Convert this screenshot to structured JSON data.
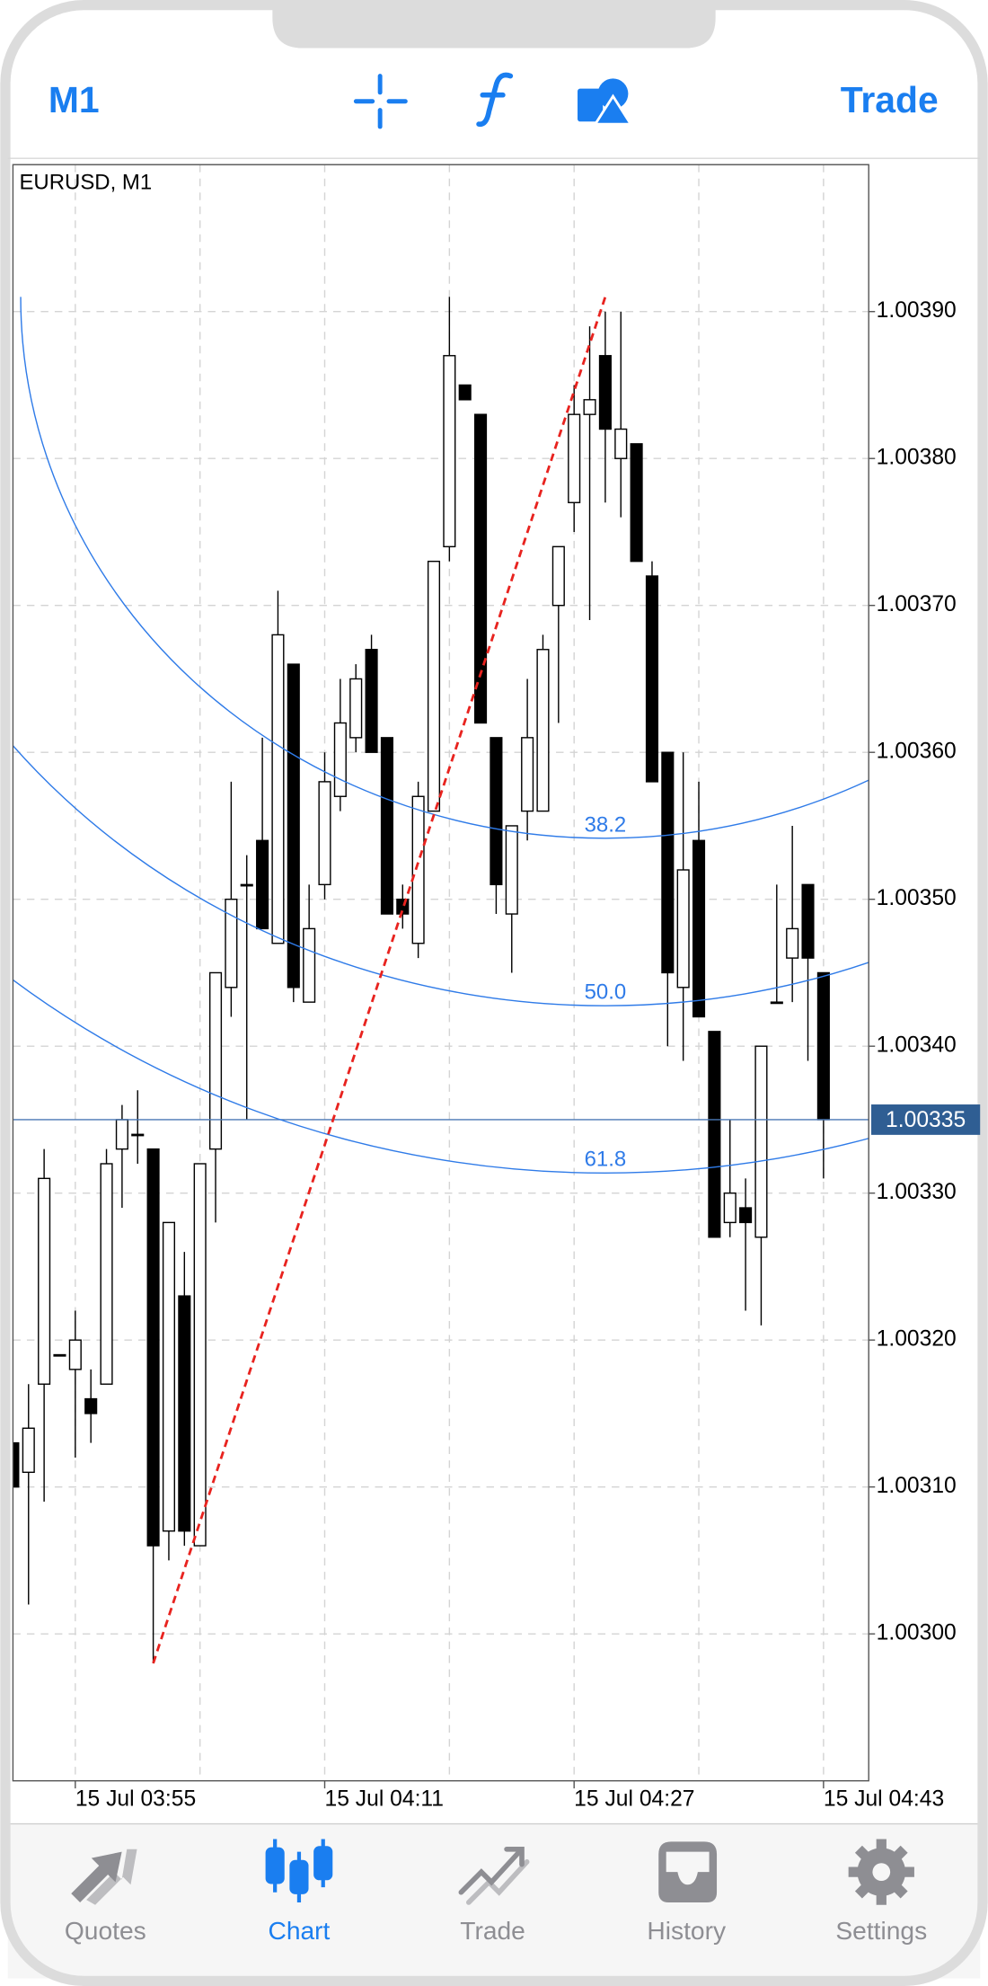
{
  "header": {
    "timeframe": "M1",
    "trade": "Trade"
  },
  "chart_data": {
    "type": "candlestick",
    "title": "EURUSD, M1",
    "open": [
      1.00313,
      1.00311,
      1.00317,
      1.00319,
      1.00318,
      1.00316,
      1.00317,
      1.00333,
      1.00334,
      1.00333,
      1.00307,
      1.00323,
      1.00306,
      1.00333,
      1.00344,
      1.00351,
      1.00354,
      1.00347,
      1.00366,
      1.00343,
      1.00351,
      1.00357,
      1.00361,
      1.00367,
      1.00361,
      1.0035,
      1.00347,
      1.00356,
      1.00374,
      1.00385,
      1.00383,
      1.00361,
      1.00349,
      1.00356,
      1.00356,
      1.0037,
      1.00377,
      1.00383,
      1.00387,
      1.0038,
      1.00381,
      1.00372,
      1.0036,
      1.00344,
      1.00354,
      1.00341,
      1.00328,
      1.00329,
      1.00327,
      1.00343,
      1.00346,
      1.00351,
      1.00345
    ],
    "high": [
      1.00313,
      1.00317,
      1.00333,
      1.00319,
      1.00322,
      1.00318,
      1.00333,
      1.00336,
      1.00337,
      1.00333,
      1.00328,
      1.00326,
      1.00332,
      1.00345,
      1.00358,
      1.00353,
      1.00361,
      1.00371,
      1.00366,
      1.00351,
      1.0036,
      1.00365,
      1.00366,
      1.00368,
      1.00361,
      1.00351,
      1.00358,
      1.00373,
      1.00391,
      1.00385,
      1.00383,
      1.00361,
      1.00355,
      1.00365,
      1.00368,
      1.00374,
      1.00385,
      1.00389,
      1.0039,
      1.0039,
      1.00381,
      1.00373,
      1.0036,
      1.0036,
      1.00358,
      1.00341,
      1.00335,
      1.00331,
      1.0034,
      1.00351,
      1.00355,
      1.00351,
      1.00345
    ],
    "low": [
      1.0031,
      1.00302,
      1.00309,
      1.00319,
      1.00312,
      1.00313,
      1.00317,
      1.00329,
      1.00332,
      1.00298,
      1.00305,
      1.00306,
      1.00306,
      1.00328,
      1.00342,
      1.00335,
      1.00348,
      1.00347,
      1.00343,
      1.00343,
      1.0035,
      1.00356,
      1.0036,
      1.0036,
      1.00349,
      1.00348,
      1.00346,
      1.00356,
      1.00373,
      1.00384,
      1.00362,
      1.00349,
      1.00345,
      1.00354,
      1.00356,
      1.00362,
      1.00375,
      1.00369,
      1.00377,
      1.00376,
      1.00373,
      1.00358,
      1.0034,
      1.00339,
      1.00342,
      1.00327,
      1.00327,
      1.00322,
      1.00321,
      1.00343,
      1.00343,
      1.00339,
      1.00331
    ],
    "close": [
      1.0031,
      1.00314,
      1.00331,
      1.00319,
      1.0032,
      1.00315,
      1.00332,
      1.00335,
      1.00334,
      1.00306,
      1.00328,
      1.00307,
      1.00332,
      1.00345,
      1.0035,
      1.00351,
      1.00348,
      1.00368,
      1.00344,
      1.00348,
      1.00358,
      1.00362,
      1.00365,
      1.0036,
      1.00349,
      1.00349,
      1.00357,
      1.00373,
      1.00387,
      1.00384,
      1.00362,
      1.00351,
      1.00355,
      1.00361,
      1.00367,
      1.00374,
      1.00383,
      1.00384,
      1.00382,
      1.00382,
      1.00373,
      1.00358,
      1.00345,
      1.00352,
      1.00342,
      1.00327,
      1.0033,
      1.00328,
      1.0034,
      1.00343,
      1.00348,
      1.00346,
      1.00335
    ],
    "up_color": "#ffffff",
    "down_color": "#000000",
    "xlim": [
      0,
      54.9
    ],
    "ylim": [
      1.0029,
      1.004
    ],
    "xticks": [
      {
        "value": 4,
        "label": "15 Jul 03:55"
      },
      {
        "value": 20,
        "label": "15 Jul 04:11"
      },
      {
        "value": 36,
        "label": "15 Jul 04:27"
      },
      {
        "value": 52,
        "label": "15 Jul 04:43"
      }
    ],
    "yticks": [
      {
        "value": 1.003,
        "label": "1.00300"
      },
      {
        "value": 1.0031,
        "label": "1.00310"
      },
      {
        "value": 1.0032,
        "label": "1.00320"
      },
      {
        "value": 1.0033,
        "label": "1.00330"
      },
      {
        "value": 1.0034,
        "label": "1.00340"
      },
      {
        "value": 1.0035,
        "label": "1.00350"
      },
      {
        "value": 1.0036,
        "label": "1.00360"
      },
      {
        "value": 1.0037,
        "label": "1.00370"
      },
      {
        "value": 1.0038,
        "label": "1.00380"
      },
      {
        "value": 1.0039,
        "label": "1.00390"
      }
    ],
    "grid": true,
    "last_price": {
      "value": 1.00335,
      "label": "1.00335"
    },
    "trendline": {
      "start": [
        9,
        1.00298
      ],
      "end": [
        38,
        1.00391
      ],
      "color": "#e8231f"
    },
    "fib_levels": [
      38.2,
      {
        "value": 50,
        "label": "50.0"
      },
      61.8
    ],
    "fib_color": "#2f7be8"
  },
  "tabs": [
    "Quotes",
    "Chart",
    "Trade",
    "History",
    "Settings"
  ],
  "active_tab": 1
}
